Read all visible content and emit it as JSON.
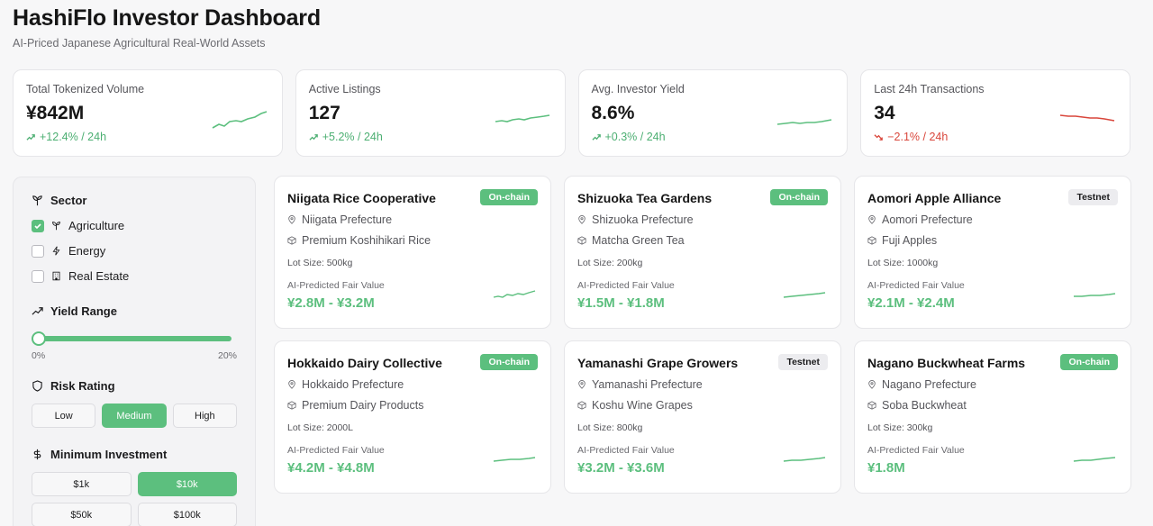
{
  "header": {
    "title": "HashiFlo Investor Dashboard",
    "subtitle": "AI-Priced Japanese Agricultural Real-World Assets"
  },
  "colors": {
    "accent": "#5cbf7e",
    "negative": "#d9463b"
  },
  "stats": [
    {
      "label": "Total Tokenized Volume",
      "value": "¥842M",
      "change": "+12.4% / 24h",
      "trend": "up"
    },
    {
      "label": "Active Listings",
      "value": "127",
      "change": "+5.2% / 24h",
      "trend": "up"
    },
    {
      "label": "Avg. Investor Yield",
      "value": "8.6%",
      "change": "+0.3% / 24h",
      "trend": "up"
    },
    {
      "label": "Last 24h Transactions",
      "value": "34",
      "change": "−2.1% / 24h",
      "trend": "down"
    }
  ],
  "filters": {
    "sector": {
      "title": "Sector",
      "icon": "sprout-icon",
      "options": [
        {
          "label": "Agriculture",
          "checked": true,
          "icon": "sprout-icon"
        },
        {
          "label": "Energy",
          "checked": false,
          "icon": "lightning-icon"
        },
        {
          "label": "Real Estate",
          "checked": false,
          "icon": "building-icon"
        }
      ]
    },
    "yield": {
      "title": "Yield Range",
      "icon": "trending-up-icon",
      "min_label": "0%",
      "max_label": "20%"
    },
    "risk": {
      "title": "Risk Rating",
      "icon": "shield-icon",
      "options": [
        "Low",
        "Medium",
        "High"
      ],
      "selected": "Medium"
    },
    "investment": {
      "title": "Minimum Investment",
      "icon": "dollar-icon",
      "options": [
        "$1k",
        "$10k",
        "$50k",
        "$100k"
      ],
      "selected": "$10k"
    }
  },
  "listings": [
    {
      "name": "Niigata Rice Cooperative",
      "status": "On-chain",
      "location": "Niigata Prefecture",
      "product": "Premium Koshihikari Rice",
      "lot": "Lot Size: 500kg",
      "fv_label": "AI-Predicted Fair Value",
      "fair_value": "¥2.8M - ¥3.2M"
    },
    {
      "name": "Shizuoka Tea Gardens",
      "status": "On-chain",
      "location": "Shizuoka Prefecture",
      "product": "Matcha Green Tea",
      "lot": "Lot Size: 200kg",
      "fv_label": "AI-Predicted Fair Value",
      "fair_value": "¥1.5M - ¥1.8M"
    },
    {
      "name": "Aomori Apple Alliance",
      "status": "Testnet",
      "location": "Aomori Prefecture",
      "product": "Fuji Apples",
      "lot": "Lot Size: 1000kg",
      "fv_label": "AI-Predicted Fair Value",
      "fair_value": "¥2.1M - ¥2.4M"
    },
    {
      "name": "Hokkaido Dairy Collective",
      "status": "On-chain",
      "location": "Hokkaido Prefecture",
      "product": "Premium Dairy Products",
      "lot": "Lot Size: 2000L",
      "fv_label": "AI-Predicted Fair Value",
      "fair_value": "¥4.2M - ¥4.8M"
    },
    {
      "name": "Yamanashi Grape Growers",
      "status": "Testnet",
      "location": "Yamanashi Prefecture",
      "product": "Koshu Wine Grapes",
      "lot": "Lot Size: 800kg",
      "fv_label": "AI-Predicted Fair Value",
      "fair_value": "¥3.2M - ¥3.6M"
    },
    {
      "name": "Nagano Buckwheat Farms",
      "status": "On-chain",
      "location": "Nagano Prefecture",
      "product": "Soba Buckwheat",
      "lot": "Lot Size: 300kg",
      "fv_label": "AI-Predicted Fair Value",
      "fair_value": "¥1.8M"
    }
  ]
}
